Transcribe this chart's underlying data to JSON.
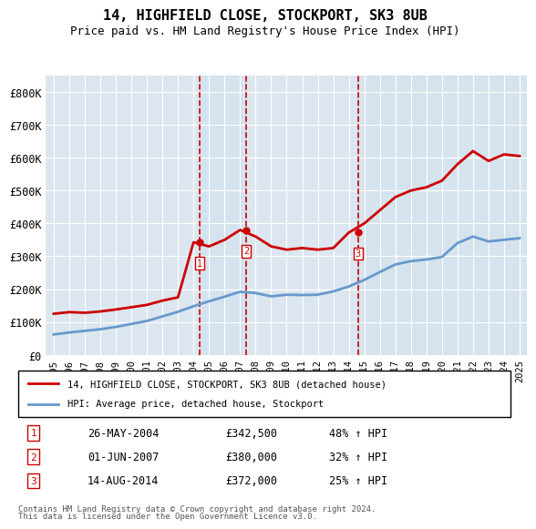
{
  "title": "14, HIGHFIELD CLOSE, STOCKPORT, SK3 8UB",
  "subtitle": "Price paid vs. HM Land Registry's House Price Index (HPI)",
  "hpi_years": [
    1995,
    1996,
    1997,
    1998,
    1999,
    2000,
    2001,
    2002,
    2003,
    2004,
    2005,
    2006,
    2007,
    2008,
    2009,
    2010,
    2011,
    2012,
    2013,
    2014,
    2015,
    2016,
    2017,
    2018,
    2019,
    2020,
    2021,
    2022,
    2023,
    2024,
    2025
  ],
  "hpi_values": [
    62000,
    68000,
    73000,
    78000,
    85000,
    94000,
    103000,
    117000,
    131000,
    148000,
    163000,
    177000,
    192000,
    188000,
    178000,
    183000,
    182000,
    183000,
    193000,
    208000,
    228000,
    252000,
    275000,
    285000,
    290000,
    298000,
    340000,
    360000,
    345000,
    350000,
    355000
  ],
  "red_years": [
    1995,
    1996,
    1997,
    1998,
    1999,
    2000,
    2001,
    2002,
    2003,
    2004,
    2005,
    2006,
    2007,
    2008,
    2009,
    2010,
    2011,
    2012,
    2013,
    2014,
    2015,
    2016,
    2017,
    2018,
    2019,
    2020,
    2021,
    2022,
    2023,
    2024,
    2025
  ],
  "red_values": [
    125000,
    130000,
    128000,
    132000,
    138000,
    145000,
    152000,
    165000,
    175000,
    342500,
    330000,
    350000,
    380000,
    360000,
    330000,
    320000,
    325000,
    320000,
    325000,
    372000,
    400000,
    440000,
    480000,
    500000,
    510000,
    530000,
    580000,
    620000,
    590000,
    610000,
    605000
  ],
  "sale_points": [
    {
      "year": 2004.4,
      "price": 342500,
      "label": "1",
      "vline_x": 2004.4
    },
    {
      "year": 2007.4,
      "price": 380000,
      "label": "2",
      "vline_x": 2007.4
    },
    {
      "year": 2014.6,
      "price": 372000,
      "label": "3",
      "vline_x": 2014.6
    }
  ],
  "legend_entries": [
    {
      "label": "14, HIGHFIELD CLOSE, STOCKPORT, SK3 8UB (detached house)",
      "color": "#cc0000",
      "lw": 2
    },
    {
      "label": "HPI: Average price, detached house, Stockport",
      "color": "#6699cc",
      "lw": 2
    }
  ],
  "table_rows": [
    {
      "num": "1",
      "date": "26-MAY-2004",
      "price": "£342,500",
      "change": "48% ↑ HPI"
    },
    {
      "num": "2",
      "date": "01-JUN-2007",
      "price": "£380,000",
      "change": "32% ↑ HPI"
    },
    {
      "num": "3",
      "date": "14-AUG-2014",
      "price": "£372,000",
      "change": "25% ↑ HPI"
    }
  ],
  "footnote1": "Contains HM Land Registry data © Crown copyright and database right 2024.",
  "footnote2": "This data is licensed under the Open Government Licence v3.0.",
  "ylim": [
    0,
    850000
  ],
  "yticks": [
    0,
    100000,
    200000,
    300000,
    400000,
    500000,
    600000,
    700000,
    800000
  ],
  "ytick_labels": [
    "£0",
    "£100K",
    "£200K",
    "£300K",
    "£400K",
    "£500K",
    "£600K",
    "£700K",
    "£800K"
  ],
  "xtick_years": [
    1995,
    1996,
    1997,
    1998,
    1999,
    2000,
    2001,
    2002,
    2003,
    2004,
    2005,
    2006,
    2007,
    2008,
    2009,
    2010,
    2011,
    2012,
    2013,
    2014,
    2015,
    2016,
    2017,
    2018,
    2019,
    2020,
    2021,
    2022,
    2023,
    2024,
    2025
  ],
  "plot_bg": "#dce6f0",
  "fig_bg": "#ffffff",
  "grid_color": "#ffffff",
  "vline_color": "#cc0000",
  "marker_box_color": "#cc0000"
}
